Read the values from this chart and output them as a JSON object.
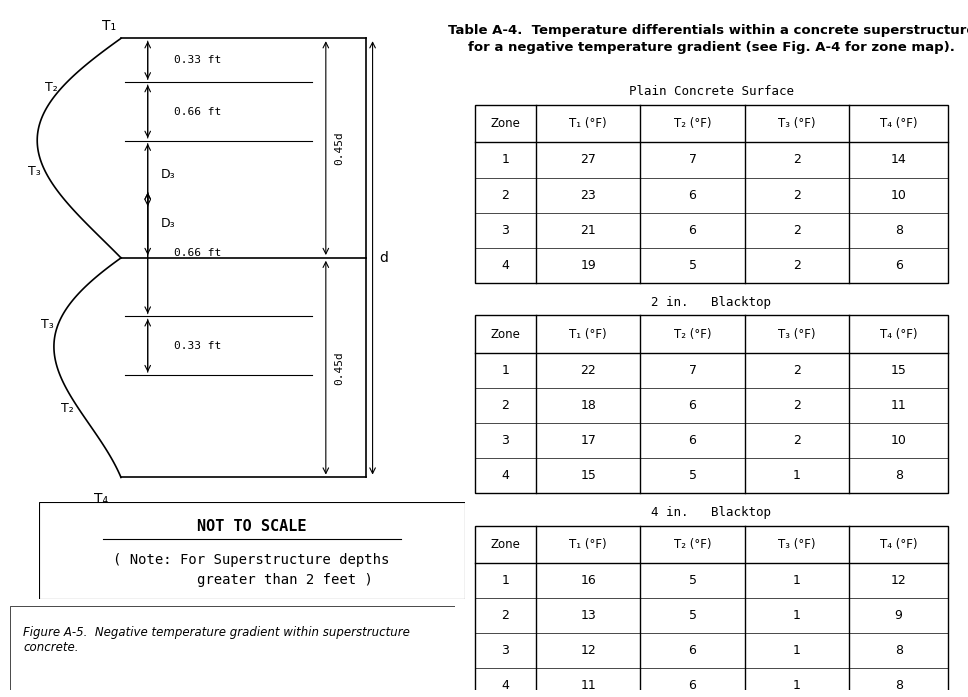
{
  "title_table": "Table A-4.  Temperature differentials within a concrete superstructure\nfor a negative temperature gradient (see Fig. A-4 for zone map).",
  "subtitle1": "Plain Concrete Surface",
  "subtitle2": "2 in.   Blacktop",
  "subtitle3": "4 in.   Blacktop",
  "col_headers": [
    "Zone",
    "T₁ (°F)",
    "T₂ (°F)",
    "T₃ (°F)",
    "T₄ (°F)"
  ],
  "table1_data": [
    [
      "1",
      "27",
      "7",
      "2",
      "14"
    ],
    [
      "2",
      "23",
      "6",
      "2",
      "10"
    ],
    [
      "3",
      "21",
      "6",
      "2",
      "8"
    ],
    [
      "4",
      "19",
      "5",
      "2",
      "6"
    ]
  ],
  "table2_data": [
    [
      "1",
      "22",
      "7",
      "2",
      "15"
    ],
    [
      "2",
      "18",
      "6",
      "2",
      "11"
    ],
    [
      "3",
      "17",
      "6",
      "2",
      "10"
    ],
    [
      "4",
      "15",
      "5",
      "1",
      "8"
    ]
  ],
  "table3_data": [
    [
      "1",
      "16",
      "5",
      "1",
      "12"
    ],
    [
      "2",
      "13",
      "5",
      "1",
      "9"
    ],
    [
      "3",
      "12",
      "6",
      "1",
      "8"
    ],
    [
      "4",
      "11",
      "6",
      "1",
      "8"
    ]
  ],
  "note_text": "NOT TO SCALE",
  "note2_text": "( Note: For Superstructure depths\n        greater than 2 feet )",
  "caption_text": "Figure A-5.  Negative temperature gradient within superstructure\nconcrete.",
  "bg_color": "#ffffff",
  "text_color": "#000000",
  "line_color": "#000000"
}
